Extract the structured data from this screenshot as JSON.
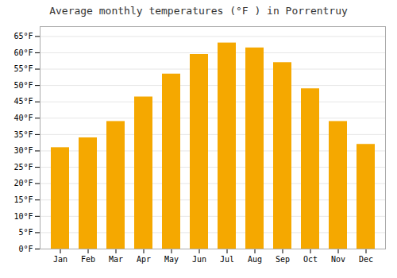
{
  "chart_data": {
    "type": "bar",
    "title": "Average monthly temperatures (°F ) in Porrentruy",
    "categories": [
      "Jan",
      "Feb",
      "Mar",
      "Apr",
      "May",
      "Jun",
      "Jul",
      "Aug",
      "Sep",
      "Oct",
      "Nov",
      "Dec"
    ],
    "values": [
      31.0,
      34.0,
      39.0,
      46.5,
      53.5,
      59.5,
      63.0,
      61.5,
      57.0,
      49.0,
      39.0,
      32.0
    ],
    "color": "#F5A800",
    "ylim": [
      0,
      68
    ],
    "yticks": [
      {
        "value": 0,
        "label": "0°F"
      },
      {
        "value": 5,
        "label": "5°F"
      },
      {
        "value": 10,
        "label": "10°F"
      },
      {
        "value": 15,
        "label": "15°F"
      },
      {
        "value": 20,
        "label": "20°F"
      },
      {
        "value": 25,
        "label": "25°F"
      },
      {
        "value": 30,
        "label": "30°F"
      },
      {
        "value": 35,
        "label": "35°F"
      },
      {
        "value": 40,
        "label": "40°F"
      },
      {
        "value": 45,
        "label": "45°F"
      },
      {
        "value": 50,
        "label": "50°F"
      },
      {
        "value": 55,
        "label": "55°F"
      },
      {
        "value": 60,
        "label": "60°F"
      },
      {
        "value": 65,
        "label": "65°F"
      }
    ],
    "grid": true
  }
}
